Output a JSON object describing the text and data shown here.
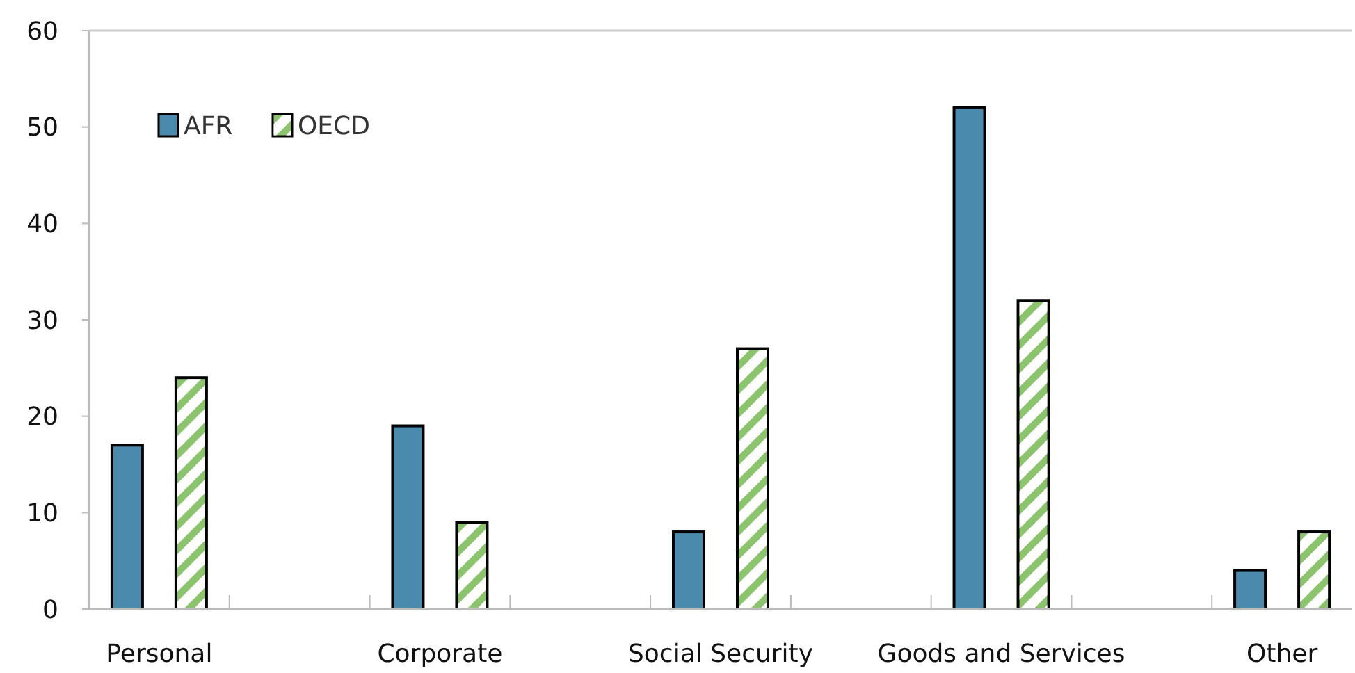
{
  "chart_data": {
    "type": "bar",
    "categories": [
      "Personal",
      null,
      "Corporate",
      null,
      "Social Security",
      null,
      "Goods and Services",
      null,
      "Other"
    ],
    "series": [
      {
        "name": "AFR",
        "color": "#4a8aad",
        "values": [
          17,
          null,
          19,
          null,
          8,
          null,
          52,
          null,
          4
        ]
      },
      {
        "name": "OECD",
        "color": "#8cc46e",
        "values": [
          24,
          null,
          9,
          null,
          27,
          null,
          32,
          null,
          8
        ]
      }
    ],
    "ylim": [
      0,
      60
    ],
    "yticks": [
      0,
      10,
      20,
      30,
      40,
      50,
      60
    ],
    "grid": false,
    "legend": "top left"
  }
}
